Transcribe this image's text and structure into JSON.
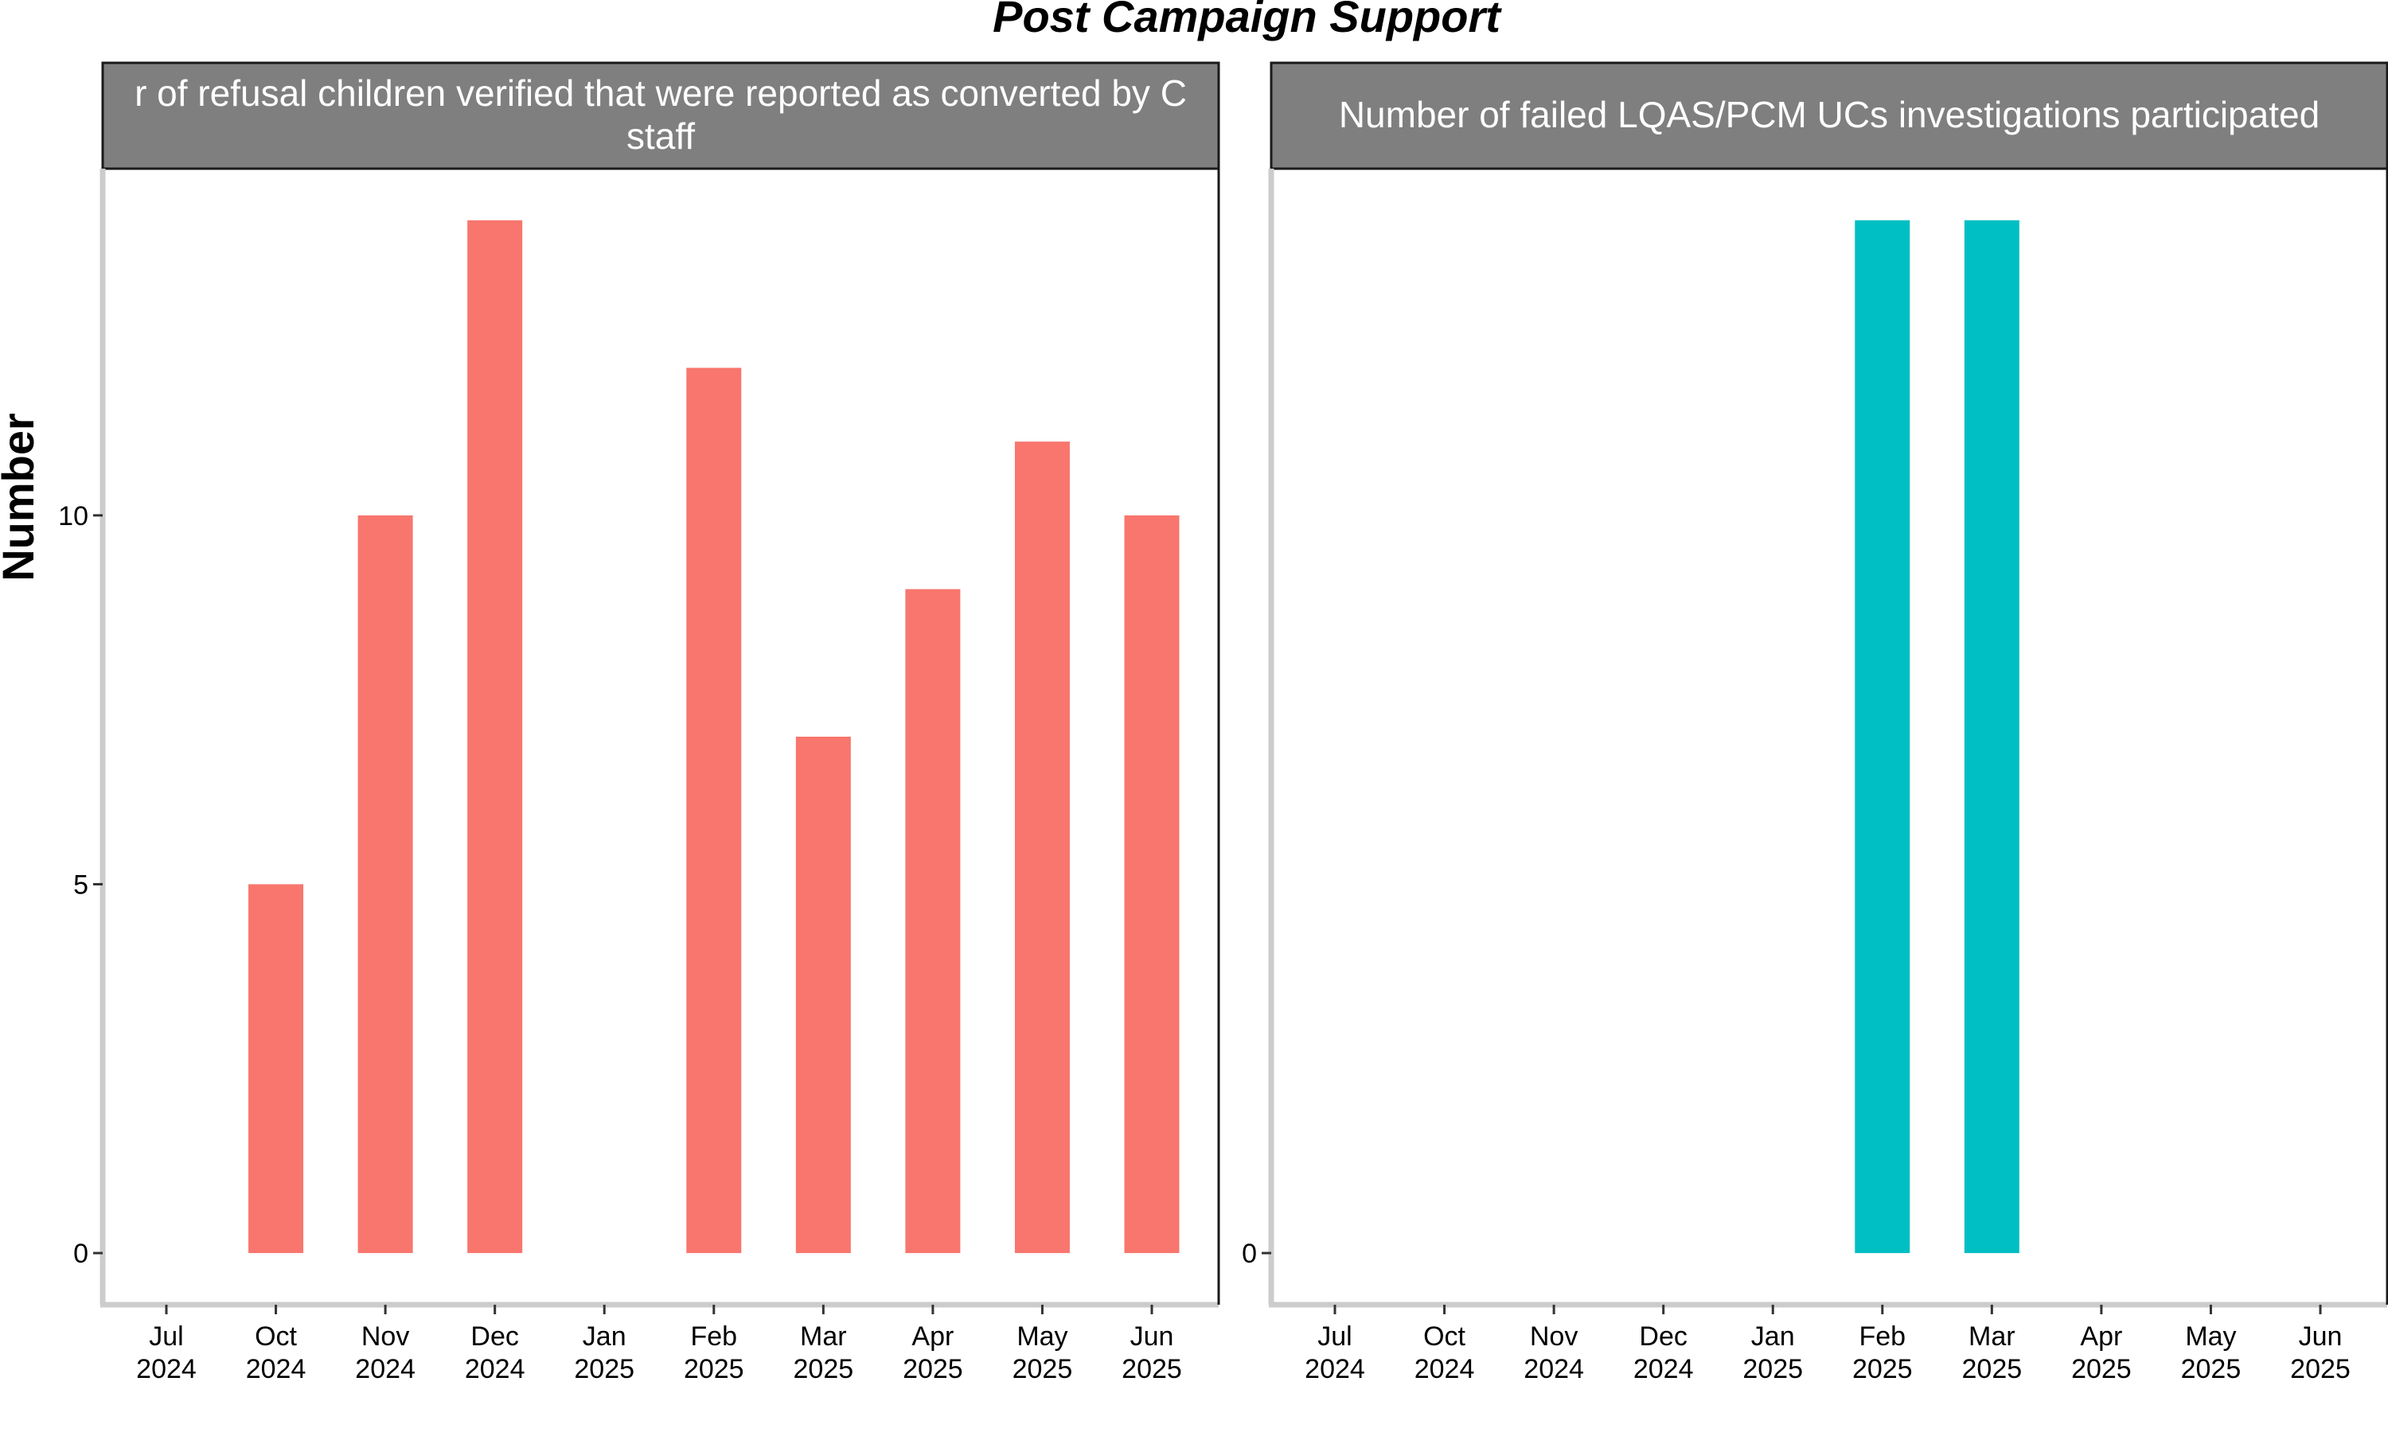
{
  "chart_data": {
    "type": "bar",
    "title": "Post Campaign Support",
    "ylabel": "Number",
    "grid": false,
    "shared_y_axis": true,
    "ylim": [
      -0.7,
      14.7
    ],
    "yticks": [
      0,
      5,
      10
    ],
    "panels": [
      {
        "strip_lines": [
          "r of refusal children verified that were reported as converted by C",
          "staff"
        ],
        "color": "#F8766D",
        "x_ticks": [
          {
            "month": "Jul",
            "year": "2024"
          },
          {
            "month": "Oct",
            "year": "2024"
          },
          {
            "month": "Nov",
            "year": "2024"
          },
          {
            "month": "Dec",
            "year": "2024"
          },
          {
            "month": "Jan",
            "year": "2025"
          },
          {
            "month": "Feb",
            "year": "2025"
          },
          {
            "month": "Mar",
            "year": "2025"
          },
          {
            "month": "Apr",
            "year": "2025"
          },
          {
            "month": "May",
            "year": "2025"
          },
          {
            "month": "Jun",
            "year": "2025"
          }
        ],
        "bars": [
          {
            "period": "Oct 2024",
            "value": 5
          },
          {
            "period": "Nov 2024",
            "value": 10
          },
          {
            "period": "Dec 2024",
            "value": 14
          },
          {
            "period": "Feb 2025",
            "value": 12
          },
          {
            "period": "Mar 2025",
            "value": 7
          },
          {
            "period": "Apr 2025",
            "value": 9
          },
          {
            "period": "May 2025",
            "value": 11
          },
          {
            "period": "Jun 2025",
            "value": 10
          }
        ]
      },
      {
        "strip_lines": [
          "Number of failed LQAS/PCM UCs investigations participated"
        ],
        "color": "#00BFC4",
        "x_ticks": [
          {
            "month": "Jul",
            "year": "2024"
          },
          {
            "month": "Oct",
            "year": "2024"
          },
          {
            "month": "Nov",
            "year": "2024"
          },
          {
            "month": "Dec",
            "year": "2024"
          },
          {
            "month": "Jan",
            "year": "2025"
          },
          {
            "month": "Feb",
            "year": "2025"
          },
          {
            "month": "Mar",
            "year": "2025"
          },
          {
            "month": "Apr",
            "year": "2025"
          },
          {
            "month": "May",
            "year": "2025"
          },
          {
            "month": "Jun",
            "year": "2025"
          }
        ],
        "bars": [
          {
            "period": "Feb 2025",
            "value": 14
          },
          {
            "period": "Mar 2025",
            "value": 14
          }
        ]
      }
    ]
  }
}
